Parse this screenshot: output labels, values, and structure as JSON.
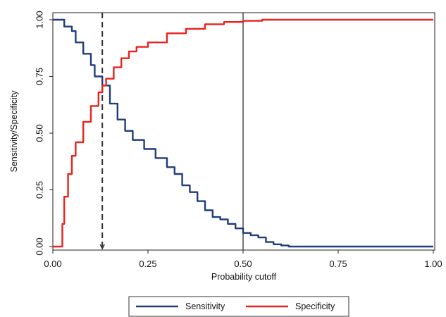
{
  "chart_data": {
    "type": "line",
    "xlabel": "Probability cutoff",
    "ylabel": "Sensitivity/Specificity",
    "xlim": [
      0,
      1
    ],
    "ylim": [
      0,
      1
    ],
    "x_ticks": [
      "0.00",
      "0.25",
      "0.50",
      "0.75",
      "1.00"
    ],
    "y_ticks": [
      "0.00",
      "0.25",
      "0.50",
      "0.75",
      "1.00"
    ],
    "grid": false,
    "legend_position": "bottom",
    "reference_lines": [
      {
        "style": "dashed",
        "x": 0.13
      },
      {
        "style": "solid",
        "x": 0.5
      }
    ],
    "series": [
      {
        "name": "Sensitivity",
        "color": "#1f3d7a",
        "x": [
          0.0,
          0.02,
          0.03,
          0.05,
          0.06,
          0.08,
          0.1,
          0.11,
          0.13,
          0.15,
          0.17,
          0.19,
          0.21,
          0.24,
          0.27,
          0.3,
          0.32,
          0.34,
          0.36,
          0.38,
          0.4,
          0.42,
          0.44,
          0.46,
          0.48,
          0.5,
          0.52,
          0.54,
          0.56,
          0.58,
          0.6,
          0.62,
          0.7,
          0.8,
          0.9,
          1.0
        ],
        "y": [
          1.0,
          1.0,
          0.97,
          0.95,
          0.9,
          0.85,
          0.8,
          0.75,
          0.71,
          0.63,
          0.56,
          0.51,
          0.47,
          0.43,
          0.39,
          0.35,
          0.32,
          0.27,
          0.24,
          0.2,
          0.16,
          0.13,
          0.12,
          0.1,
          0.08,
          0.06,
          0.05,
          0.04,
          0.02,
          0.01,
          0.005,
          0.0,
          0.0,
          0.0,
          0.0,
          0.0
        ]
      },
      {
        "name": "Specificity",
        "color": "#e8231f",
        "x": [
          0.0,
          0.02,
          0.025,
          0.03,
          0.04,
          0.05,
          0.06,
          0.08,
          0.1,
          0.12,
          0.13,
          0.14,
          0.16,
          0.18,
          0.2,
          0.22,
          0.25,
          0.3,
          0.35,
          0.4,
          0.45,
          0.5,
          0.55,
          0.6,
          0.7,
          0.8,
          0.9,
          1.0
        ],
        "y": [
          0.0,
          0.0,
          0.1,
          0.22,
          0.32,
          0.4,
          0.46,
          0.55,
          0.62,
          0.68,
          0.71,
          0.74,
          0.79,
          0.83,
          0.86,
          0.88,
          0.9,
          0.94,
          0.96,
          0.98,
          0.99,
          0.995,
          1.0,
          1.0,
          1.0,
          1.0,
          1.0,
          1.0
        ]
      }
    ]
  }
}
